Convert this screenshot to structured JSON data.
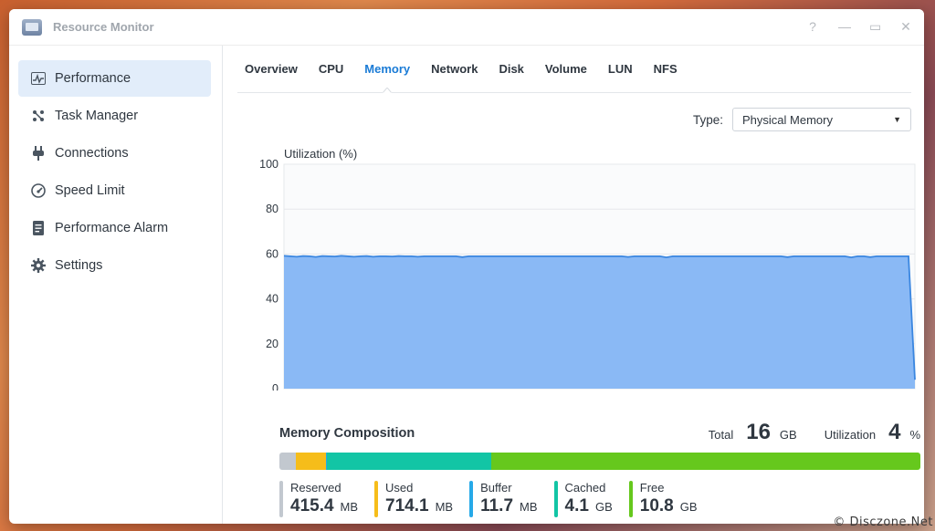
{
  "window": {
    "title": "Resource Monitor",
    "controls": [
      "?",
      "—",
      "▭",
      "✕"
    ]
  },
  "sidebar": {
    "items": [
      {
        "label": "Performance",
        "icon": "chart-icon",
        "active": true
      },
      {
        "label": "Task Manager",
        "icon": "tasks-icon",
        "active": false
      },
      {
        "label": "Connections",
        "icon": "plug-icon",
        "active": false
      },
      {
        "label": "Speed Limit",
        "icon": "gauge-icon",
        "active": false
      },
      {
        "label": "Performance Alarm",
        "icon": "alarm-icon",
        "active": false
      },
      {
        "label": "Settings",
        "icon": "gear-icon",
        "active": false
      }
    ]
  },
  "tabs": [
    {
      "label": "Overview",
      "active": false
    },
    {
      "label": "CPU",
      "active": false
    },
    {
      "label": "Memory",
      "active": true
    },
    {
      "label": "Network",
      "active": false
    },
    {
      "label": "Disk",
      "active": false
    },
    {
      "label": "Volume",
      "active": false
    },
    {
      "label": "LUN",
      "active": false
    },
    {
      "label": "NFS",
      "active": false
    }
  ],
  "type_filter": {
    "label": "Type:",
    "value": "Physical Memory"
  },
  "chart_data": {
    "type": "area",
    "title": "",
    "ylabel": "Utilization (%)",
    "xlabel": "",
    "ylim": [
      0,
      100
    ],
    "yticks": [
      0,
      20,
      40,
      60,
      80,
      100
    ],
    "grid": true,
    "series": [
      {
        "color": "#8ab9f5",
        "line_color": "#3a86e0",
        "values": [
          59.2,
          59.0,
          58.8,
          59.1,
          59.0,
          58.7,
          59.1,
          59.0,
          58.9,
          59.2,
          59.0,
          58.8,
          59.0,
          59.1,
          58.8,
          59.0,
          59.0,
          58.9,
          59.1,
          59.0,
          59.0,
          58.8,
          59.0,
          59.0,
          59.0,
          59.0,
          59.0,
          59.0,
          58.6,
          59.0,
          59.0,
          59.0,
          59.0,
          59.0,
          59.0,
          59.0,
          59.0,
          59.0,
          59.0,
          59.0,
          59.0,
          59.0,
          59.0,
          59.0,
          59.0,
          59.0,
          59.0,
          59.0,
          59.0,
          59.0,
          59.0,
          59.0,
          59.0,
          59.0,
          58.7,
          59.0,
          59.0,
          59.0,
          59.0,
          59.0,
          58.5,
          59.0,
          59.0,
          59.0,
          59.0,
          59.0,
          59.0,
          59.0,
          59.0,
          59.0,
          59.0,
          59.0,
          59.0,
          59.0,
          59.0,
          59.0,
          59.0,
          59.0,
          59.0,
          58.6,
          59.0,
          59.0,
          59.0,
          59.0,
          59.0,
          59.0,
          59.0,
          59.0,
          59.0,
          58.5,
          59.0,
          59.0,
          58.6,
          59.0,
          59.0,
          59.0,
          59.0,
          59.0,
          59.0,
          4.0
        ]
      }
    ]
  },
  "composition": {
    "title": "Memory Composition",
    "total_label": "Total",
    "total_value": "16",
    "total_unit": "GB",
    "util_label": "Utilization",
    "util_value": "4",
    "util_unit": "%",
    "segments": [
      {
        "label": "Reserved",
        "value": "415.4",
        "unit": "MB",
        "color": "#c2c8cf",
        "share": 0.026
      },
      {
        "label": "Used",
        "value": "714.1",
        "unit": "MB",
        "color": "#f6bd1a",
        "share": 0.046
      },
      {
        "label": "Buffer",
        "value": "11.7",
        "unit": "MB",
        "color": "#26a9e8",
        "share": 0.002
      },
      {
        "label": "Cached",
        "value": "4.1",
        "unit": "GB",
        "color": "#12c5a5",
        "share": 0.256
      },
      {
        "label": "Free",
        "value": "10.8",
        "unit": "GB",
        "color": "#66c81d",
        "share": 0.67
      }
    ]
  },
  "watermark": "© Disczone.Net"
}
